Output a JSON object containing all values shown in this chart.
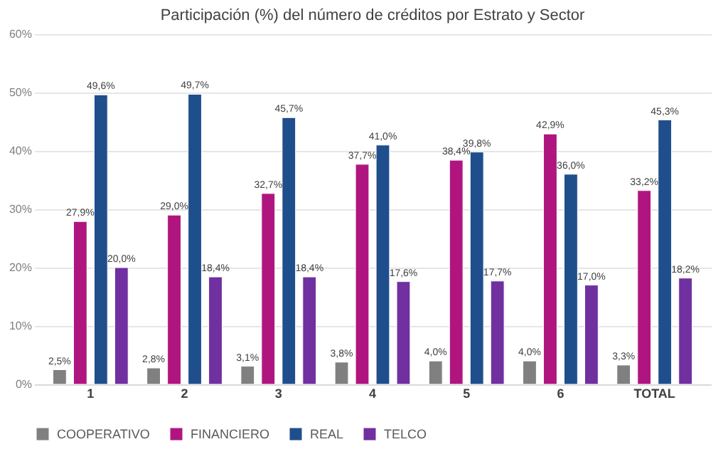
{
  "chart_data": {
    "type": "bar",
    "title": "Participación (%) del número de créditos por Estrato y Sector",
    "categories": [
      "1",
      "2",
      "3",
      "4",
      "5",
      "6",
      "TOTAL"
    ],
    "series": [
      {
        "name": "COOPERATIVO",
        "color": "#808080",
        "values": [
          2.5,
          2.8,
          3.1,
          3.8,
          4.0,
          4.0,
          3.3
        ],
        "value_labels": [
          "2,5%",
          "2,8%",
          "3,1%",
          "3,8%",
          "4,0%",
          "4,0%",
          "3,3%"
        ]
      },
      {
        "name": "FINANCIERO",
        "color": "#b0157f",
        "values": [
          27.9,
          29.0,
          32.7,
          37.7,
          38.4,
          42.9,
          33.2
        ],
        "value_labels": [
          "27,9%",
          "29,0%",
          "32,7%",
          "37,7%",
          "38,4%",
          "42,9%",
          "33,2%"
        ]
      },
      {
        "name": "REAL",
        "color": "#1f4e8c",
        "values": [
          49.6,
          49.7,
          45.7,
          41.0,
          39.8,
          36.0,
          45.3
        ],
        "value_labels": [
          "49,6%",
          "49,7%",
          "45,7%",
          "41,0%",
          "39,8%",
          "36,0%",
          "45,3%"
        ]
      },
      {
        "name": "TELCO",
        "color": "#7030a0",
        "values": [
          20.0,
          18.4,
          18.4,
          17.6,
          17.7,
          17.0,
          18.2
        ],
        "value_labels": [
          "20,0%",
          "18,4%",
          "18,4%",
          "17,6%",
          "17,7%",
          "17,0%",
          "18,2%"
        ]
      }
    ],
    "ylim": [
      0,
      60
    ],
    "yticks": [
      {
        "value": 0,
        "label": "0%"
      },
      {
        "value": 10,
        "label": "10%"
      },
      {
        "value": 20,
        "label": "20%"
      },
      {
        "value": 30,
        "label": "30%"
      },
      {
        "value": 40,
        "label": "40%"
      },
      {
        "value": 50,
        "label": "50%"
      },
      {
        "value": 60,
        "label": "60%"
      }
    ],
    "grid": "y",
    "legend": "bottom"
  }
}
